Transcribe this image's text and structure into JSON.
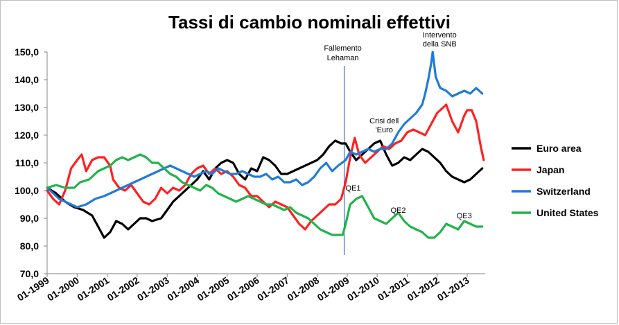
{
  "chart_data": {
    "type": "line",
    "title": "Tassi di cambio nominali effettivi",
    "xlabel": "",
    "ylabel": "",
    "ylim": [
      70,
      150
    ],
    "y_ticks": [
      "150,0",
      "140,0",
      "130,0",
      "120,0",
      "110,0",
      "100,0",
      "90,0",
      "80,0",
      "70,0"
    ],
    "x_ticks": [
      "01-1999",
      "01-2000",
      "01-2001",
      "01-2002",
      "01-2003",
      "01-2004",
      "01-2005",
      "01-2006",
      "01-2007",
      "01-2008",
      "01-2009",
      "01-2010",
      "01-2011",
      "01-2012",
      "01-2013"
    ],
    "x_unit": "date (year, monthly data)",
    "x_range": [
      1999.0,
      2013.6
    ],
    "legend_position": "right",
    "grid": false,
    "series": [
      {
        "name": "Euro area",
        "color": "#000000",
        "points": [
          [
            1999.0,
            101
          ],
          [
            1999.3,
            99
          ],
          [
            1999.6,
            96
          ],
          [
            1999.9,
            94
          ],
          [
            2000.2,
            93
          ],
          [
            2000.5,
            91
          ],
          [
            2000.7,
            87
          ],
          [
            2000.9,
            83
          ],
          [
            2001.1,
            85
          ],
          [
            2001.3,
            89
          ],
          [
            2001.5,
            88
          ],
          [
            2001.7,
            86
          ],
          [
            2001.9,
            88
          ],
          [
            2002.1,
            90
          ],
          [
            2002.3,
            90
          ],
          [
            2002.5,
            89
          ],
          [
            2002.8,
            90
          ],
          [
            2003.0,
            93
          ],
          [
            2003.2,
            96
          ],
          [
            2003.4,
            98
          ],
          [
            2003.6,
            100
          ],
          [
            2003.8,
            102
          ],
          [
            2004.0,
            104
          ],
          [
            2004.2,
            107
          ],
          [
            2004.4,
            104
          ],
          [
            2004.6,
            108
          ],
          [
            2004.8,
            110
          ],
          [
            2005.0,
            111
          ],
          [
            2005.2,
            110
          ],
          [
            2005.4,
            106
          ],
          [
            2005.6,
            104
          ],
          [
            2005.8,
            108
          ],
          [
            2006.0,
            107
          ],
          [
            2006.2,
            112
          ],
          [
            2006.4,
            111
          ],
          [
            2006.6,
            109
          ],
          [
            2006.8,
            106
          ],
          [
            2007.0,
            106
          ],
          [
            2007.2,
            107
          ],
          [
            2007.4,
            108
          ],
          [
            2007.6,
            109
          ],
          [
            2007.8,
            110
          ],
          [
            2008.0,
            111
          ],
          [
            2008.2,
            113
          ],
          [
            2008.4,
            116
          ],
          [
            2008.6,
            118
          ],
          [
            2008.8,
            117
          ],
          [
            2008.95,
            117
          ],
          [
            2009.1,
            114
          ],
          [
            2009.3,
            111
          ],
          [
            2009.5,
            113
          ],
          [
            2009.7,
            115
          ],
          [
            2009.9,
            117
          ],
          [
            2010.1,
            118
          ],
          [
            2010.3,
            113
          ],
          [
            2010.5,
            109
          ],
          [
            2010.7,
            110
          ],
          [
            2010.9,
            112
          ],
          [
            2011.1,
            111
          ],
          [
            2011.3,
            113
          ],
          [
            2011.5,
            115
          ],
          [
            2011.7,
            114
          ],
          [
            2011.9,
            112
          ],
          [
            2012.1,
            110
          ],
          [
            2012.3,
            107
          ],
          [
            2012.5,
            105
          ],
          [
            2012.7,
            104
          ],
          [
            2012.9,
            103
          ],
          [
            2013.1,
            104
          ],
          [
            2013.3,
            106
          ],
          [
            2013.5,
            108
          ]
        ]
      },
      {
        "name": "Japan",
        "color": "#ff2020",
        "points": [
          [
            1999.0,
            100
          ],
          [
            1999.2,
            97
          ],
          [
            1999.4,
            95
          ],
          [
            1999.6,
            100
          ],
          [
            1999.8,
            108
          ],
          [
            2000.0,
            111
          ],
          [
            2000.15,
            113
          ],
          [
            2000.3,
            107
          ],
          [
            2000.5,
            111
          ],
          [
            2000.7,
            112
          ],
          [
            2000.9,
            112
          ],
          [
            2001.1,
            109
          ],
          [
            2001.2,
            104
          ],
          [
            2001.4,
            101
          ],
          [
            2001.6,
            100
          ],
          [
            2001.8,
            102
          ],
          [
            2002.0,
            99
          ],
          [
            2002.2,
            96
          ],
          [
            2002.4,
            95
          ],
          [
            2002.6,
            97
          ],
          [
            2002.8,
            101
          ],
          [
            2003.0,
            99
          ],
          [
            2003.2,
            101
          ],
          [
            2003.4,
            100
          ],
          [
            2003.6,
            102
          ],
          [
            2003.8,
            106
          ],
          [
            2004.0,
            108
          ],
          [
            2004.2,
            109
          ],
          [
            2004.4,
            106
          ],
          [
            2004.6,
            108
          ],
          [
            2004.8,
            106
          ],
          [
            2005.0,
            107
          ],
          [
            2005.2,
            105
          ],
          [
            2005.4,
            102
          ],
          [
            2005.6,
            101
          ],
          [
            2005.8,
            98
          ],
          [
            2006.0,
            98
          ],
          [
            2006.2,
            96
          ],
          [
            2006.4,
            94
          ],
          [
            2006.6,
            96
          ],
          [
            2006.8,
            95
          ],
          [
            2007.0,
            94
          ],
          [
            2007.2,
            91
          ],
          [
            2007.4,
            88
          ],
          [
            2007.6,
            86
          ],
          [
            2007.8,
            89
          ],
          [
            2008.0,
            91
          ],
          [
            2008.2,
            93
          ],
          [
            2008.4,
            95
          ],
          [
            2008.6,
            95
          ],
          [
            2008.8,
            97
          ],
          [
            2008.95,
            103
          ],
          [
            2009.1,
            112
          ],
          [
            2009.25,
            119
          ],
          [
            2009.4,
            113
          ],
          [
            2009.6,
            110
          ],
          [
            2009.8,
            112
          ],
          [
            2010.0,
            114
          ],
          [
            2010.2,
            116
          ],
          [
            2010.4,
            115
          ],
          [
            2010.6,
            117
          ],
          [
            2010.8,
            118
          ],
          [
            2011.0,
            121
          ],
          [
            2011.2,
            122
          ],
          [
            2011.4,
            121
          ],
          [
            2011.6,
            120
          ],
          [
            2011.8,
            124
          ],
          [
            2012.0,
            128
          ],
          [
            2012.2,
            130
          ],
          [
            2012.3,
            131
          ],
          [
            2012.5,
            125
          ],
          [
            2012.7,
            121
          ],
          [
            2012.9,
            127
          ],
          [
            2013.0,
            129
          ],
          [
            2013.15,
            129
          ],
          [
            2013.3,
            125
          ],
          [
            2013.45,
            116
          ],
          [
            2013.55,
            111
          ]
        ]
      },
      {
        "name": "Switzerland",
        "color": "#1f7bd8",
        "points": [
          [
            1999.0,
            101
          ],
          [
            1999.2,
            99
          ],
          [
            1999.4,
            97
          ],
          [
            1999.6,
            96
          ],
          [
            1999.8,
            95
          ],
          [
            2000.0,
            94
          ],
          [
            2000.3,
            95
          ],
          [
            2000.6,
            97
          ],
          [
            2000.9,
            98
          ],
          [
            2001.1,
            99
          ],
          [
            2001.3,
            100
          ],
          [
            2001.5,
            101
          ],
          [
            2001.7,
            102
          ],
          [
            2001.9,
            103
          ],
          [
            2002.1,
            104
          ],
          [
            2002.3,
            105
          ],
          [
            2002.5,
            106
          ],
          [
            2002.7,
            107
          ],
          [
            2002.9,
            108
          ],
          [
            2003.1,
            109
          ],
          [
            2003.3,
            108
          ],
          [
            2003.5,
            107
          ],
          [
            2003.7,
            106
          ],
          [
            2003.9,
            105
          ],
          [
            2004.1,
            106
          ],
          [
            2004.3,
            107
          ],
          [
            2004.5,
            106
          ],
          [
            2004.7,
            108
          ],
          [
            2004.9,
            107
          ],
          [
            2005.1,
            106
          ],
          [
            2005.3,
            106
          ],
          [
            2005.5,
            107
          ],
          [
            2005.7,
            106
          ],
          [
            2005.9,
            105
          ],
          [
            2006.1,
            105
          ],
          [
            2006.3,
            106
          ],
          [
            2006.5,
            104
          ],
          [
            2006.7,
            105
          ],
          [
            2006.9,
            103
          ],
          [
            2007.1,
            103
          ],
          [
            2007.3,
            104
          ],
          [
            2007.5,
            102
          ],
          [
            2007.7,
            103
          ],
          [
            2007.9,
            105
          ],
          [
            2008.1,
            108
          ],
          [
            2008.3,
            110
          ],
          [
            2008.5,
            107
          ],
          [
            2008.7,
            109
          ],
          [
            2008.95,
            111
          ],
          [
            2009.1,
            114
          ],
          [
            2009.3,
            113
          ],
          [
            2009.5,
            114
          ],
          [
            2009.7,
            115
          ],
          [
            2009.9,
            114
          ],
          [
            2010.1,
            115
          ],
          [
            2010.3,
            115
          ],
          [
            2010.5,
            117
          ],
          [
            2010.7,
            121
          ],
          [
            2010.9,
            124
          ],
          [
            2011.1,
            126
          ],
          [
            2011.3,
            128
          ],
          [
            2011.5,
            131
          ],
          [
            2011.6,
            135
          ],
          [
            2011.7,
            140
          ],
          [
            2011.8,
            146
          ],
          [
            2011.85,
            150
          ],
          [
            2011.95,
            141
          ],
          [
            2012.1,
            137
          ],
          [
            2012.3,
            136
          ],
          [
            2012.5,
            134
          ],
          [
            2012.7,
            135
          ],
          [
            2012.9,
            136
          ],
          [
            2013.1,
            135
          ],
          [
            2013.3,
            137
          ],
          [
            2013.5,
            135
          ]
        ]
      },
      {
        "name": "United States",
        "color": "#21b34a",
        "points": [
          [
            1999.0,
            101
          ],
          [
            1999.3,
            102
          ],
          [
            1999.6,
            101
          ],
          [
            1999.9,
            101
          ],
          [
            2000.1,
            103
          ],
          [
            2000.4,
            104
          ],
          [
            2000.7,
            107
          ],
          [
            2000.9,
            108
          ],
          [
            2001.1,
            109
          ],
          [
            2001.3,
            111
          ],
          [
            2001.5,
            112
          ],
          [
            2001.7,
            111
          ],
          [
            2001.9,
            112
          ],
          [
            2002.1,
            113
          ],
          [
            2002.3,
            112
          ],
          [
            2002.5,
            110
          ],
          [
            2002.7,
            110
          ],
          [
            2002.9,
            108
          ],
          [
            2003.1,
            106
          ],
          [
            2003.3,
            105
          ],
          [
            2003.5,
            103
          ],
          [
            2003.7,
            102
          ],
          [
            2003.9,
            101
          ],
          [
            2004.1,
            100
          ],
          [
            2004.3,
            102
          ],
          [
            2004.5,
            101
          ],
          [
            2004.7,
            99
          ],
          [
            2004.9,
            98
          ],
          [
            2005.1,
            97
          ],
          [
            2005.3,
            96
          ],
          [
            2005.5,
            97
          ],
          [
            2005.7,
            98
          ],
          [
            2005.9,
            97
          ],
          [
            2006.1,
            96
          ],
          [
            2006.3,
            95
          ],
          [
            2006.5,
            95
          ],
          [
            2006.7,
            94
          ],
          [
            2006.9,
            93
          ],
          [
            2007.1,
            94
          ],
          [
            2007.3,
            92
          ],
          [
            2007.5,
            91
          ],
          [
            2007.7,
            90
          ],
          [
            2007.9,
            88
          ],
          [
            2008.1,
            86
          ],
          [
            2008.3,
            85
          ],
          [
            2008.5,
            84
          ],
          [
            2008.7,
            84
          ],
          [
            2008.85,
            84
          ],
          [
            2008.95,
            88
          ],
          [
            2009.1,
            95
          ],
          [
            2009.3,
            97
          ],
          [
            2009.5,
            98
          ],
          [
            2009.7,
            94
          ],
          [
            2009.9,
            90
          ],
          [
            2010.1,
            89
          ],
          [
            2010.3,
            88
          ],
          [
            2010.5,
            90
          ],
          [
            2010.7,
            92
          ],
          [
            2010.9,
            89
          ],
          [
            2011.1,
            87
          ],
          [
            2011.3,
            86
          ],
          [
            2011.5,
            85
          ],
          [
            2011.7,
            83
          ],
          [
            2011.9,
            83
          ],
          [
            2012.1,
            85
          ],
          [
            2012.3,
            88
          ],
          [
            2012.5,
            87
          ],
          [
            2012.7,
            86
          ],
          [
            2012.9,
            89
          ],
          [
            2013.1,
            88
          ],
          [
            2013.3,
            87
          ],
          [
            2013.5,
            87
          ]
        ]
      }
    ],
    "vertical_lines": [
      {
        "x": 2008.9,
        "color": "#4472c4",
        "label": [
          "Fallemento",
          "Lehaman"
        ]
      }
    ],
    "annotations": [
      {
        "text": [
          "Intervento",
          "della SNB"
        ],
        "x": 2011.85,
        "y": 152
      },
      {
        "text": [
          "Crisi dell",
          "'Euro"
        ],
        "x": 2010.0,
        "y": 121
      },
      {
        "text": [
          "QE1"
        ],
        "x": 2009.2,
        "y": 100
      },
      {
        "text": [
          "QE2"
        ],
        "x": 2010.7,
        "y": 92
      },
      {
        "text": [
          "QE3"
        ],
        "x": 2012.9,
        "y": 90
      }
    ]
  }
}
